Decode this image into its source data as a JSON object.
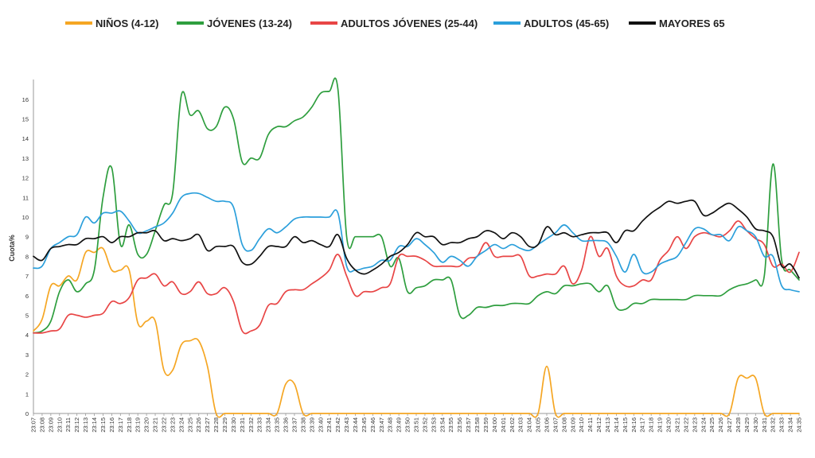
{
  "chart_data": {
    "type": "line",
    "title": "",
    "xlabel": "",
    "ylabel": "Cuota%",
    "ylim": [
      0,
      16.8
    ],
    "yticks": [
      0,
      1,
      2,
      3,
      4,
      5,
      6,
      7,
      8,
      9,
      10,
      11,
      12,
      13,
      14,
      15,
      16
    ],
    "grid": false,
    "legend_position": "top",
    "x": [
      "23:07",
      "23:08",
      "23:09",
      "23:10",
      "23:11",
      "23:12",
      "23:13",
      "23:14",
      "23:15",
      "23:16",
      "23:17",
      "23:18",
      "23:19",
      "23:20",
      "23:21",
      "23:22",
      "23:23",
      "23:24",
      "23:25",
      "23:26",
      "23:27",
      "23:28",
      "23:29",
      "23:30",
      "23:31",
      "23:32",
      "23:33",
      "23:34",
      "23:35",
      "23:36",
      "23:37",
      "23:38",
      "23:39",
      "23:40",
      "23:41",
      "23:42",
      "23:43",
      "23:44",
      "23:45",
      "23:46",
      "23:47",
      "23:48",
      "23:49",
      "23:50",
      "23:51",
      "23:52",
      "23:53",
      "23:54",
      "23:55",
      "23:56",
      "23:57",
      "23:58",
      "23:59",
      "24:00",
      "24:01",
      "24:02",
      "24:03",
      "24:04",
      "24:05",
      "24:06",
      "24:07",
      "24:08",
      "24:09",
      "24:10",
      "24:11",
      "24:12",
      "24:13",
      "24:14",
      "24:15",
      "24:16",
      "24:17",
      "24:18",
      "24:19",
      "24:20",
      "24:21",
      "24:22",
      "24:23",
      "24:24",
      "24:25",
      "24:26",
      "24:27",
      "24:28",
      "24:29",
      "24:30",
      "24:31",
      "24:32",
      "24:33",
      "24:34",
      "24:35"
    ],
    "series": [
      {
        "name": "NIÑOS (4-12)",
        "color": "#F5A623",
        "values": [
          4.2,
          4.8,
          6.5,
          6.5,
          7.0,
          6.8,
          8.2,
          8.2,
          8.4,
          7.3,
          7.3,
          7.3,
          4.6,
          4.7,
          4.7,
          2.2,
          2.2,
          3.5,
          3.7,
          3.7,
          2.4,
          0.0,
          0.0,
          0.0,
          0.0,
          0.0,
          0.0,
          0.0,
          0.0,
          1.5,
          1.5,
          0.0,
          0.0,
          0.0,
          0.0,
          0.0,
          0.0,
          0.0,
          0.0,
          0.0,
          0.0,
          0.0,
          0.0,
          0.0,
          0.0,
          0.0,
          0.0,
          0.0,
          0.0,
          0.0,
          0.0,
          0.0,
          0.0,
          0.0,
          0.0,
          0.0,
          0.0,
          0.0,
          0.0,
          2.4,
          0.0,
          0.0,
          0.0,
          0.0,
          0.0,
          0.0,
          0.0,
          0.0,
          0.0,
          0.0,
          0.0,
          0.0,
          0.0,
          0.0,
          0.0,
          0.0,
          0.0,
          0.0,
          0.0,
          0.0,
          0.0,
          1.8,
          1.8,
          1.8,
          0.0,
          0.0,
          0.0,
          0.0,
          0.0
        ]
      },
      {
        "name": "JÓVENES (13-24)",
        "color": "#2E9E3E",
        "values": [
          4.1,
          4.2,
          4.7,
          6.2,
          6.8,
          6.2,
          6.6,
          7.3,
          11.0,
          12.5,
          8.6,
          9.6,
          8.1,
          8.1,
          9.3,
          10.6,
          11.2,
          16.2,
          15.2,
          15.4,
          14.5,
          14.6,
          15.6,
          15.0,
          12.8,
          13.0,
          13.0,
          14.2,
          14.6,
          14.6,
          14.9,
          15.1,
          15.6,
          16.3,
          16.4,
          16.5,
          9.0,
          9.0,
          9.0,
          9.0,
          9.0,
          7.5,
          7.9,
          6.2,
          6.4,
          6.5,
          6.8,
          6.8,
          6.8,
          5.0,
          5.0,
          5.4,
          5.4,
          5.5,
          5.5,
          5.6,
          5.6,
          5.6,
          6.0,
          6.2,
          6.1,
          6.5,
          6.5,
          6.6,
          6.6,
          6.2,
          6.5,
          5.4,
          5.3,
          5.6,
          5.6,
          5.8,
          5.8,
          5.8,
          5.8,
          5.8,
          6.0,
          6.0,
          6.0,
          6.0,
          6.3,
          6.5,
          6.6,
          6.8,
          7.0,
          12.7,
          7.8,
          7.3,
          6.8
        ]
      },
      {
        "name": "ADULTOS JÓVENES (25-44)",
        "color": "#E84545",
        "values": [
          4.1,
          4.1,
          4.2,
          4.3,
          5.0,
          5.0,
          4.9,
          5.0,
          5.1,
          5.7,
          5.6,
          5.9,
          6.8,
          6.9,
          7.1,
          6.5,
          6.7,
          6.1,
          6.2,
          6.7,
          6.1,
          6.1,
          6.4,
          5.7,
          4.2,
          4.2,
          4.5,
          5.5,
          5.6,
          6.2,
          6.3,
          6.3,
          6.6,
          6.9,
          7.3,
          8.1,
          7.0,
          6.0,
          6.2,
          6.2,
          6.4,
          6.6,
          8.0,
          8.0,
          8.0,
          7.8,
          7.5,
          7.5,
          7.5,
          7.5,
          7.9,
          8.0,
          8.7,
          8.0,
          8.0,
          8.0,
          8.0,
          7.0,
          7.0,
          7.1,
          7.1,
          7.5,
          6.6,
          7.3,
          9.0,
          8.0,
          8.4,
          7.0,
          6.5,
          6.5,
          6.8,
          6.8,
          7.8,
          8.3,
          9.0,
          8.4,
          9.0,
          9.2,
          9.1,
          9.0,
          9.3,
          9.8,
          9.3,
          8.9,
          8.6,
          7.5,
          7.6,
          7.2,
          8.2
        ]
      },
      {
        "name": "ADULTOS (45-65)",
        "color": "#2B9FDB",
        "values": [
          7.4,
          7.5,
          8.4,
          8.7,
          9.0,
          9.1,
          10.0,
          9.7,
          10.2,
          10.2,
          10.3,
          9.8,
          9.2,
          9.3,
          9.5,
          9.7,
          10.2,
          11.0,
          11.2,
          11.2,
          11.0,
          10.8,
          10.8,
          10.5,
          8.6,
          8.3,
          8.9,
          9.4,
          9.2,
          9.5,
          9.9,
          10.0,
          10.0,
          10.0,
          10.0,
          10.2,
          7.5,
          7.3,
          7.4,
          7.5,
          7.8,
          7.8,
          8.5,
          8.5,
          8.9,
          8.6,
          8.2,
          7.7,
          8.0,
          7.8,
          7.5,
          8.0,
          8.3,
          8.6,
          8.4,
          8.6,
          8.4,
          8.3,
          8.6,
          8.9,
          9.2,
          9.6,
          9.2,
          8.8,
          8.8,
          8.8,
          8.7,
          8.0,
          7.2,
          8.1,
          7.2,
          7.2,
          7.6,
          7.8,
          8.0,
          8.7,
          9.4,
          9.4,
          9.1,
          9.1,
          8.8,
          9.5,
          9.3,
          9.0,
          8.0,
          8.0,
          6.5,
          6.3,
          6.2
        ]
      },
      {
        "name": "MAYORES 65",
        "color": "#111111",
        "values": [
          8.0,
          7.8,
          8.4,
          8.5,
          8.6,
          8.6,
          8.9,
          8.9,
          9.0,
          8.7,
          9.0,
          9.0,
          9.2,
          9.2,
          9.3,
          8.8,
          8.9,
          8.8,
          8.9,
          9.1,
          8.3,
          8.5,
          8.5,
          8.5,
          7.7,
          7.6,
          8.0,
          8.5,
          8.5,
          8.5,
          9.0,
          8.7,
          8.8,
          8.6,
          8.5,
          9.1,
          7.9,
          7.3,
          7.1,
          7.3,
          7.6,
          8.0,
          8.2,
          8.6,
          9.2,
          9.0,
          9.0,
          8.6,
          8.7,
          8.7,
          8.9,
          9.0,
          9.3,
          9.2,
          8.9,
          9.2,
          9.0,
          8.5,
          8.6,
          9.5,
          9.1,
          9.2,
          9.0,
          9.1,
          9.2,
          9.2,
          9.2,
          8.7,
          9.3,
          9.3,
          9.8,
          10.2,
          10.5,
          10.8,
          10.7,
          10.8,
          10.8,
          10.1,
          10.2,
          10.5,
          10.7,
          10.4,
          10.0,
          9.4,
          9.3,
          9.0,
          7.5,
          7.6,
          6.9
        ]
      }
    ]
  }
}
